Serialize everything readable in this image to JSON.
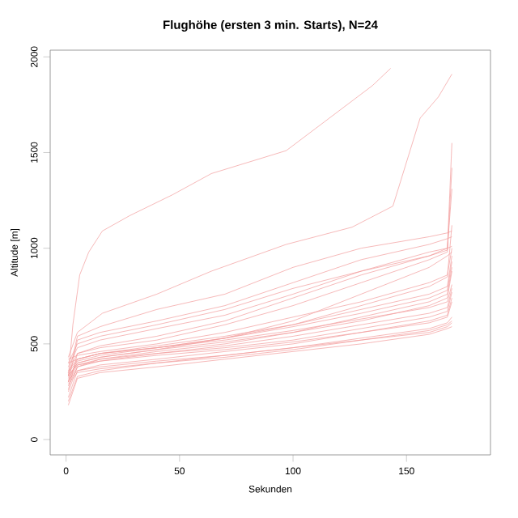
{
  "chart_data": {
    "type": "line",
    "title": "Flughöhe (ersten 3 min. Starts), N=24",
    "xlabel": "Sekunden",
    "ylabel": "Altitude [m]",
    "xlim": [
      -7,
      187
    ],
    "ylim": [
      -80,
      2035
    ],
    "xticks": [
      0,
      50,
      100,
      150
    ],
    "yticks": [
      0,
      500,
      1000,
      1500,
      2000
    ],
    "grid": false,
    "series": [
      {
        "color": "#f29a9a",
        "x": [
          1,
          3,
          6,
          10,
          16,
          28,
          47,
          64,
          97,
          116,
          135,
          143
        ],
        "values": [
          330,
          600,
          860,
          980,
          1090,
          1170,
          1280,
          1390,
          1510,
          1680,
          1850,
          1940
        ]
      },
      {
        "color": "#f29a9a",
        "x": [
          1,
          5,
          16,
          40,
          64,
          97,
          126,
          144,
          156,
          164,
          170
        ],
        "values": [
          430,
          560,
          660,
          760,
          880,
          1020,
          1110,
          1220,
          1680,
          1790,
          1910
        ]
      },
      {
        "color": "#f29a9a",
        "x": [
          1,
          5,
          15,
          40,
          70,
          100,
          130,
          160,
          168,
          170
        ],
        "values": [
          330,
          540,
          590,
          680,
          760,
          900,
          1000,
          1060,
          1080,
          1090
        ]
      },
      {
        "color": "#f29a9a",
        "x": [
          1,
          5,
          15,
          40,
          70,
          100,
          130,
          160,
          168,
          170
        ],
        "values": [
          300,
          520,
          560,
          620,
          700,
          820,
          940,
          1020,
          1050,
          1060
        ]
      },
      {
        "color": "#f29a9a",
        "x": [
          1,
          5,
          15,
          40,
          70,
          100,
          130,
          160,
          168,
          170
        ],
        "values": [
          380,
          480,
          520,
          580,
          650,
          760,
          880,
          980,
          1000,
          1310
        ]
      },
      {
        "color": "#f29a9a",
        "x": [
          1,
          5,
          15,
          40,
          70,
          100,
          130,
          160,
          168,
          170
        ],
        "values": [
          350,
          450,
          490,
          540,
          620,
          740,
          860,
          960,
          1000,
          1010
        ]
      },
      {
        "color": "#f29a9a",
        "x": [
          1,
          5,
          15,
          40,
          70,
          100,
          130,
          160,
          168,
          170
        ],
        "values": [
          260,
          450,
          480,
          520,
          600,
          700,
          820,
          940,
          980,
          1420
        ]
      },
      {
        "color": "#f29a9a",
        "x": [
          1,
          5,
          15,
          40,
          70,
          100,
          130,
          160,
          168,
          170
        ],
        "values": [
          400,
          420,
          450,
          480,
          530,
          620,
          760,
          900,
          960,
          980
        ]
      },
      {
        "color": "#f29a9a",
        "x": [
          1,
          5,
          15,
          40,
          70,
          100,
          130,
          160,
          168,
          170
        ],
        "values": [
          320,
          400,
          430,
          470,
          530,
          600,
          700,
          800,
          850,
          1120
        ]
      },
      {
        "color": "#f29a9a",
        "x": [
          1,
          5,
          15,
          40,
          70,
          100,
          130,
          160,
          168,
          170
        ],
        "values": [
          420,
          440,
          460,
          500,
          560,
          640,
          720,
          820,
          860,
          1000
        ]
      },
      {
        "color": "#f29a9a",
        "x": [
          1,
          5,
          15,
          40,
          70,
          100,
          130,
          160,
          168,
          170
        ],
        "values": [
          300,
          420,
          450,
          490,
          540,
          600,
          680,
          760,
          800,
          960
        ]
      },
      {
        "color": "#f29a9a",
        "x": [
          1,
          5,
          15,
          40,
          70,
          100,
          130,
          160,
          168,
          170
        ],
        "values": [
          350,
          410,
          440,
          480,
          530,
          590,
          660,
          740,
          780,
          930
        ]
      },
      {
        "color": "#f29a9a",
        "x": [
          1,
          5,
          15,
          40,
          70,
          100,
          130,
          160,
          168,
          170
        ],
        "values": [
          280,
          380,
          420,
          460,
          500,
          560,
          640,
          720,
          760,
          900
        ]
      },
      {
        "color": "#f29a9a",
        "x": [
          1,
          5,
          15,
          40,
          70,
          100,
          130,
          160,
          168,
          170
        ],
        "values": [
          330,
          400,
          430,
          470,
          510,
          560,
          620,
          700,
          740,
          880
        ]
      },
      {
        "color": "#f29a9a",
        "x": [
          1,
          5,
          15,
          40,
          70,
          100,
          130,
          160,
          168,
          170
        ],
        "values": [
          360,
          420,
          450,
          480,
          520,
          570,
          630,
          690,
          720,
          810
        ]
      },
      {
        "color": "#f29a9a",
        "x": [
          1,
          5,
          15,
          40,
          70,
          100,
          130,
          160,
          168,
          170
        ],
        "values": [
          250,
          380,
          410,
          450,
          490,
          540,
          600,
          660,
          690,
          790
        ]
      },
      {
        "color": "#f29a9a",
        "x": [
          1,
          5,
          15,
          40,
          70,
          100,
          130,
          160,
          168,
          170
        ],
        "values": [
          300,
          390,
          420,
          450,
          480,
          520,
          580,
          640,
          670,
          770
        ]
      },
      {
        "color": "#f29a9a",
        "x": [
          1,
          5,
          15,
          40,
          70,
          100,
          130,
          160,
          168,
          170
        ],
        "values": [
          220,
          360,
          390,
          420,
          460,
          500,
          560,
          620,
          650,
          740
        ]
      },
      {
        "color": "#f29a9a",
        "x": [
          1,
          5,
          15,
          40,
          70,
          100,
          130,
          160,
          168,
          170
        ],
        "values": [
          340,
          390,
          410,
          440,
          470,
          510,
          560,
          610,
          640,
          720
        ]
      },
      {
        "color": "#f29a9a",
        "x": [
          1,
          5,
          15,
          40,
          70,
          100,
          130,
          160,
          168,
          170
        ],
        "values": [
          200,
          330,
          360,
          400,
          440,
          480,
          530,
          580,
          610,
          640
        ]
      },
      {
        "color": "#f29a9a",
        "x": [
          1,
          5,
          15,
          40,
          70,
          100,
          130,
          160,
          168,
          170
        ],
        "values": [
          310,
          360,
          380,
          410,
          440,
          480,
          520,
          570,
          600,
          620
        ]
      },
      {
        "color": "#f29a9a",
        "x": [
          1,
          5,
          15,
          40,
          70,
          100,
          130,
          160,
          168,
          170
        ],
        "values": [
          180,
          320,
          350,
          380,
          420,
          460,
          500,
          550,
          580,
          590
        ]
      },
      {
        "color": "#f29a9a",
        "x": [
          1,
          5,
          15,
          40,
          70,
          100,
          130,
          160,
          168,
          170
        ],
        "values": [
          290,
          350,
          370,
          400,
          430,
          470,
          520,
          560,
          590,
          610
        ]
      },
      {
        "color": "#f29a9a",
        "x": [
          1,
          5,
          15,
          40,
          70,
          100,
          130,
          160,
          168,
          170
        ],
        "values": [
          400,
          500,
          540,
          600,
          680,
          790,
          880,
          960,
          990,
          1550
        ]
      }
    ]
  }
}
